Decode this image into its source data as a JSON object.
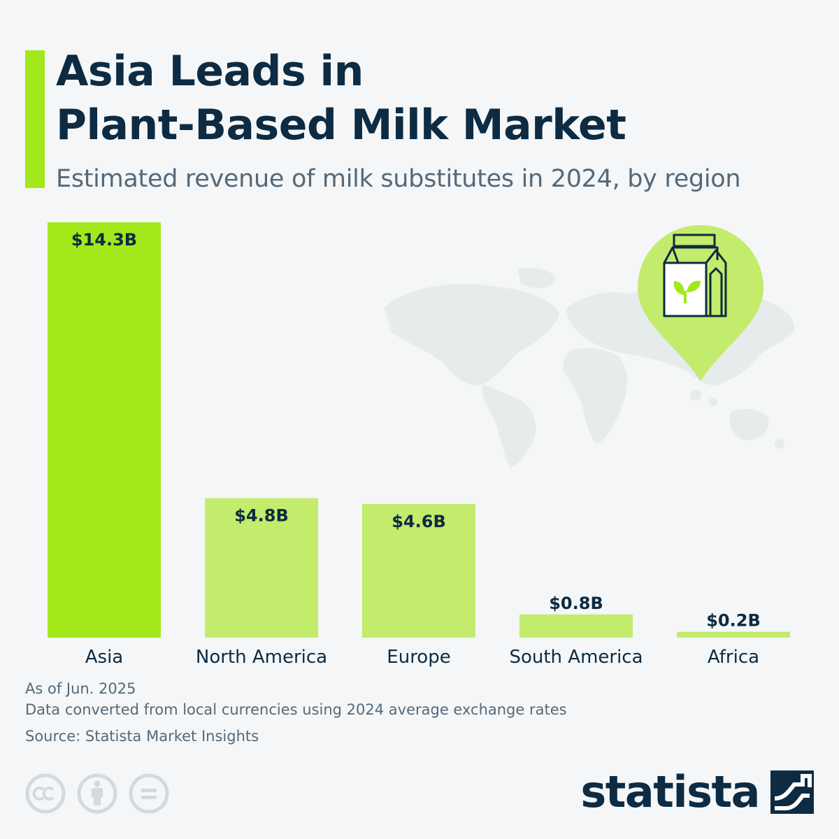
{
  "header": {
    "title_line1": "Asia Leads in",
    "title_line2": "Plant-Based Milk Market",
    "subtitle": "Estimated revenue of milk substitutes in 2024, by region"
  },
  "chart_data": {
    "type": "bar",
    "title": "Asia Leads in Plant-Based Milk Market",
    "subtitle": "Estimated revenue of milk substitutes in 2024, by region",
    "categories": [
      "Asia",
      "North America",
      "Europe",
      "South America",
      "Africa"
    ],
    "values": [
      14.3,
      4.8,
      4.6,
      0.8,
      0.2
    ],
    "labels": [
      "$14.3B",
      "$4.8B",
      "$4.6B",
      "$0.8B",
      "$0.2B"
    ],
    "unit": "billion U.S. dollars",
    "ylim": [
      0,
      14.3
    ],
    "grid": false,
    "colors": {
      "highlight": "#a3e81a",
      "default": "#c3eb6c"
    }
  },
  "footer": {
    "note_date": "As of Jun. 2025",
    "note_conversion": "Data converted from local currencies using 2024 average exchange rates",
    "source": "Source: Statista Market Insights",
    "license_icons": [
      "cc-icon",
      "attribution-icon",
      "no-derivatives-icon"
    ],
    "brand": "statista"
  },
  "colors": {
    "background": "#f4f6f7",
    "text_dark": "#0d2b42",
    "text_muted": "#54697a",
    "accent": "#a3e81a",
    "map": "#e6ebec"
  },
  "icons": {
    "pin": "location-pin-icon",
    "carton": "milk-carton-icon"
  }
}
